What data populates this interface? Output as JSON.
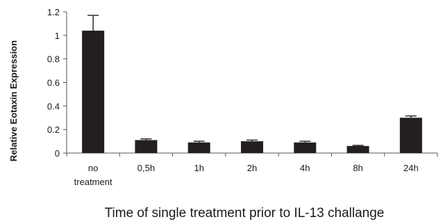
{
  "chart_data": {
    "type": "bar",
    "categories": [
      [
        "no",
        "treatment"
      ],
      [
        "0,5h"
      ],
      [
        "1h"
      ],
      [
        "2h"
      ],
      [
        "4h"
      ],
      [
        "8h"
      ],
      [
        "24h"
      ]
    ],
    "values": [
      1.04,
      0.11,
      0.09,
      0.1,
      0.09,
      0.06,
      0.3
    ],
    "errors": [
      0.13,
      0.01,
      0.01,
      0.01,
      0.01,
      0.005,
      0.015
    ],
    "ylabel": "Relative Eotaxin Expression",
    "xlabel": "Time of single treatment prior to IL-13 challange",
    "ylim": [
      0,
      1.2
    ],
    "yticks": [
      "0",
      "0.2",
      "0.4",
      "0.6",
      "0.8",
      "1",
      "1.2"
    ],
    "ytick_values": [
      0,
      0.2,
      0.4,
      0.6,
      0.8,
      1.0,
      1.2
    ],
    "grid": false,
    "bar_color": "#231f20"
  }
}
